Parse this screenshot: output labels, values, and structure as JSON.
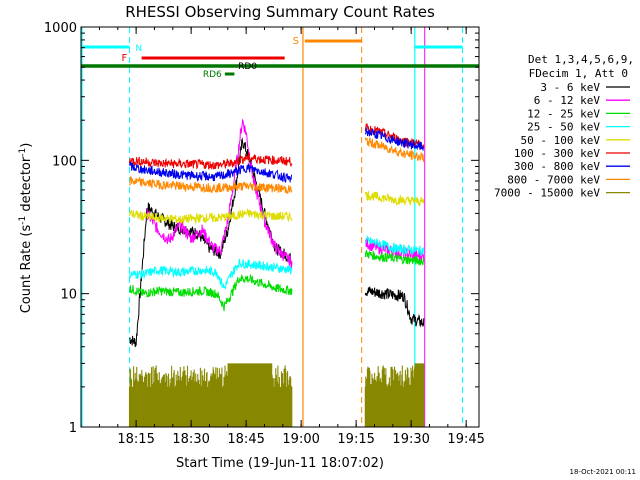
{
  "chart_data": {
    "type": "line",
    "title": "RHESSI Observing Summary Count Rates",
    "xlabel": "Start Time (19-Jun-11 18:07:02)",
    "ylabel_main": "Count Rate (s",
    "ylabel_sup1": "-1",
    "ylabel_mid": " detector",
    "ylabel_sup2": "-1",
    "ylabel_end": ")",
    "footer": "18-Oct-2021 00:11",
    "yscale": "log",
    "ylim": [
      1,
      1000
    ],
    "xlim_min": [
      0,
      95
    ],
    "x_ticks": [
      {
        "t": 8,
        "label": "18:15"
      },
      {
        "t": 23,
        "label": "18:30"
      },
      {
        "t": 38,
        "label": "18:45"
      },
      {
        "t": 53,
        "label": "19:00"
      },
      {
        "t": 68,
        "label": "19:15"
      },
      {
        "t": 83,
        "label": "19:30"
      },
      {
        "t": 98,
        "label": "19:45"
      }
    ],
    "y_ticks": [
      {
        "v": 1,
        "label": "1"
      },
      {
        "v": 10,
        "label": "10"
      },
      {
        "v": 100,
        "label": "100"
      },
      {
        "v": 1000,
        "label": "1000"
      }
    ],
    "legend": {
      "header1": "Det 1,3,4,5,6,9,",
      "header2": "FDecim 1, Att 0",
      "entries": [
        {
          "label": "3 - 6 keV",
          "color": "#000000"
        },
        {
          "label": "6 - 12 keV",
          "color": "#ff00ff"
        },
        {
          "label": "12 - 25 keV",
          "color": "#00dd00"
        },
        {
          "label": "25 - 50 keV",
          "color": "#00ffff"
        },
        {
          "label": "50 - 100 keV",
          "color": "#dddd00"
        },
        {
          "label": "100 - 300 keV",
          "color": "#ee0000"
        },
        {
          "label": "300 - 800 keV",
          "color": "#0000ee"
        },
        {
          "label": "800 - 7000 keV",
          "color": "#ff8800"
        },
        {
          "label": "7000 - 15000 keV",
          "color": "#888800"
        }
      ]
    },
    "flags": [
      {
        "label": "N",
        "color": "#00ffff"
      },
      {
        "label": "F",
        "color": "#ee0000"
      },
      {
        "label": "S",
        "color": "#ff8800"
      },
      {
        "label": "RD0",
        "color": "#000000"
      },
      {
        "label": "RD6",
        "color": "#007700"
      }
    ],
    "segments": [
      [
        6.2,
        50.5
      ],
      [
        70.5,
        86.5
      ]
    ],
    "series": [
      {
        "name": "3 - 6 keV",
        "color": "#000000",
        "seg1": [
          [
            6.2,
            4.6
          ],
          [
            8,
            4.3
          ],
          [
            11,
            45
          ],
          [
            14,
            38
          ],
          [
            18,
            32
          ],
          [
            22,
            30
          ],
          [
            25,
            28
          ],
          [
            28,
            22
          ],
          [
            31,
            20
          ],
          [
            33,
            30
          ],
          [
            35,
            60
          ],
          [
            37,
            140
          ],
          [
            38,
            120
          ],
          [
            40,
            80
          ],
          [
            43,
            40
          ],
          [
            46,
            22
          ],
          [
            50.5,
            18
          ]
        ],
        "seg2": [
          [
            70.5,
            10.5
          ],
          [
            74,
            10.2
          ],
          [
            78,
            9.8
          ],
          [
            81,
            9.6
          ],
          [
            83,
            6.5
          ],
          [
            86.5,
            6
          ]
        ]
      },
      {
        "name": "6 - 12 keV",
        "color": "#ff00ff",
        "seg1": [
          [
            11,
            40
          ],
          [
            14,
            30
          ],
          [
            17,
            25
          ],
          [
            20,
            33
          ],
          [
            23,
            26
          ],
          [
            26,
            30
          ],
          [
            29,
            22
          ],
          [
            31,
            21
          ],
          [
            33,
            35
          ],
          [
            35,
            80
          ],
          [
            37,
            200
          ],
          [
            38,
            160
          ],
          [
            40,
            70
          ],
          [
            43,
            35
          ],
          [
            46,
            22
          ],
          [
            50.5,
            17
          ]
        ],
        "seg2": [
          [
            70.5,
            24
          ],
          [
            74,
            22
          ],
          [
            78,
            21
          ],
          [
            81,
            20
          ],
          [
            86.5,
            19
          ]
        ]
      },
      {
        "name": "12 - 25 keV",
        "color": "#00dd00",
        "seg1": [
          [
            6.2,
            11
          ],
          [
            10,
            10
          ],
          [
            14,
            10.5
          ],
          [
            20,
            10.2
          ],
          [
            26,
            10.5
          ],
          [
            30,
            10
          ],
          [
            32,
            8
          ],
          [
            34,
            10
          ],
          [
            36,
            13
          ],
          [
            38,
            13
          ],
          [
            42,
            12
          ],
          [
            46,
            11
          ],
          [
            50.5,
            10.5
          ]
        ],
        "seg2": [
          [
            70.5,
            20
          ],
          [
            74,
            19
          ],
          [
            78,
            18.5
          ],
          [
            81,
            18
          ],
          [
            86.5,
            17.5
          ]
        ]
      },
      {
        "name": "25 - 50 keV",
        "color": "#00ffff",
        "seg1": [
          [
            6.2,
            14
          ],
          [
            10,
            14
          ],
          [
            14,
            15
          ],
          [
            20,
            14.5
          ],
          [
            26,
            15
          ],
          [
            30,
            14.5
          ],
          [
            32,
            11
          ],
          [
            34,
            14
          ],
          [
            36,
            17
          ],
          [
            40,
            16.5
          ],
          [
            44,
            16
          ],
          [
            50.5,
            15
          ]
        ],
        "seg2": [
          [
            70.5,
            25
          ],
          [
            74,
            24
          ],
          [
            78,
            22
          ],
          [
            81,
            21.5
          ],
          [
            86.5,
            21
          ]
        ]
      },
      {
        "name": "50 - 100 keV",
        "color": "#dddd00",
        "seg1": [
          [
            6.2,
            40
          ],
          [
            10,
            38
          ],
          [
            14,
            37
          ],
          [
            20,
            36
          ],
          [
            26,
            37
          ],
          [
            30,
            37
          ],
          [
            34,
            38
          ],
          [
            38,
            40
          ],
          [
            42,
            39
          ],
          [
            46,
            38
          ],
          [
            50.5,
            38
          ]
        ],
        "seg2": [
          [
            70.5,
            55
          ],
          [
            74,
            53
          ],
          [
            78,
            51
          ],
          [
            81,
            50
          ],
          [
            86.5,
            49
          ]
        ]
      },
      {
        "name": "100 - 300 keV",
        "color": "#ee0000",
        "seg1": [
          [
            6.2,
            100
          ],
          [
            10,
            98
          ],
          [
            14,
            95
          ],
          [
            20,
            94
          ],
          [
            26,
            93
          ],
          [
            30,
            92
          ],
          [
            34,
            95
          ],
          [
            38,
            105
          ],
          [
            42,
            102
          ],
          [
            46,
            100
          ],
          [
            50.5,
            98
          ]
        ],
        "seg2": [
          [
            70.5,
            175
          ],
          [
            74,
            165
          ],
          [
            78,
            150
          ],
          [
            81,
            140
          ],
          [
            86.5,
            130
          ]
        ]
      },
      {
        "name": "300 - 800 keV",
        "color": "#0000ee",
        "seg1": [
          [
            6.2,
            90
          ],
          [
            10,
            85
          ],
          [
            14,
            82
          ],
          [
            20,
            78
          ],
          [
            26,
            76
          ],
          [
            30,
            75
          ],
          [
            34,
            80
          ],
          [
            38,
            88
          ],
          [
            42,
            83
          ],
          [
            46,
            78
          ],
          [
            50.5,
            72
          ]
        ],
        "seg2": [
          [
            70.5,
            165
          ],
          [
            74,
            155
          ],
          [
            78,
            142
          ],
          [
            81,
            135
          ],
          [
            86.5,
            125
          ]
        ]
      },
      {
        "name": "800 - 7000 keV",
        "color": "#ff8800",
        "seg1": [
          [
            6.2,
            70
          ],
          [
            10,
            68
          ],
          [
            14,
            66
          ],
          [
            20,
            64
          ],
          [
            26,
            63
          ],
          [
            30,
            62
          ],
          [
            34,
            63
          ],
          [
            38,
            64
          ],
          [
            42,
            63
          ],
          [
            46,
            62
          ],
          [
            50.5,
            60
          ]
        ],
        "seg2": [
          [
            70.5,
            140
          ],
          [
            74,
            130
          ],
          [
            78,
            120
          ],
          [
            81,
            112
          ],
          [
            86.5,
            105
          ]
        ]
      }
    ]
  }
}
